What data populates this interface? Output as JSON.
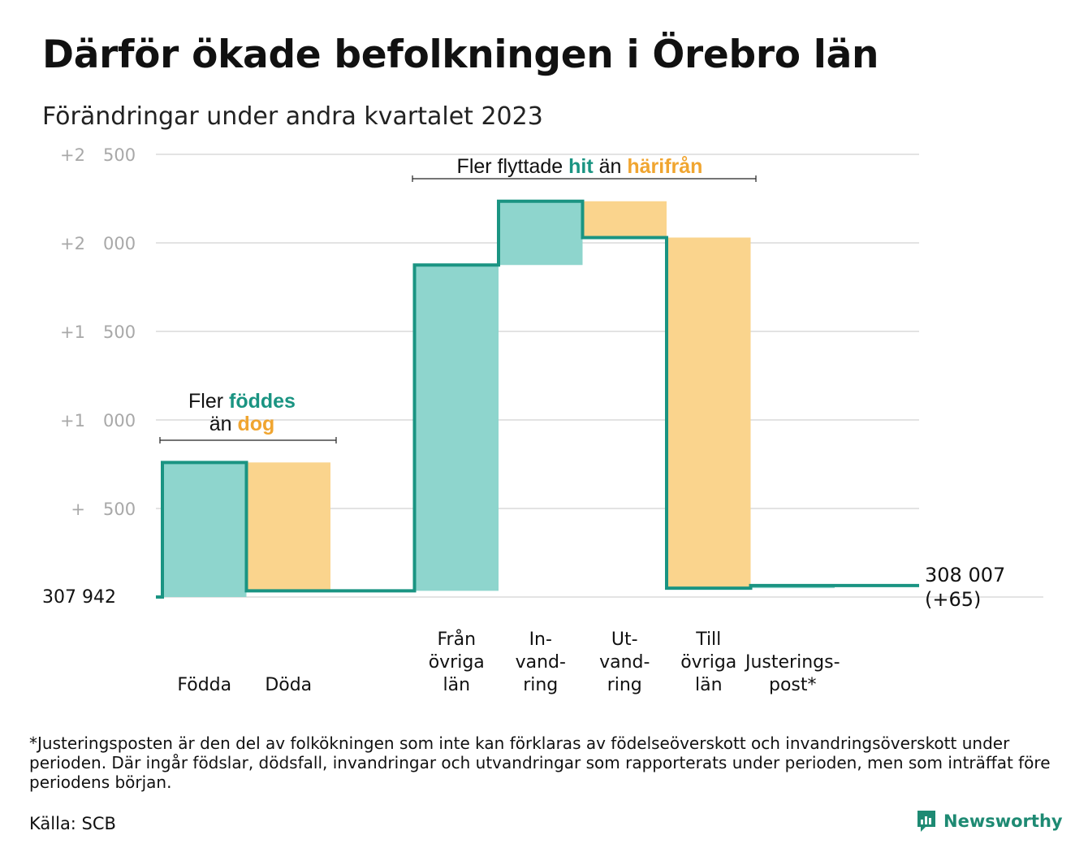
{
  "title": "Därför ökade befolkningen i Örebro län",
  "subtitle": "Förändringar under andra kvartalet 2023",
  "footnote": "*Justeringsposten är den del av folkökningen som inte kan förklaras av födelseöverskott och invandringsöverskott under perioden. Där ingår födslar, dödsfall, invandringar och utvandringar som rapporterats under perioden, men som inträffat före periodens början.",
  "source": "Källa: SCB",
  "brand": {
    "name": "Newsworthy",
    "icon": "newsworthy-logo-icon"
  },
  "colors": {
    "increase": "#8ed5cd",
    "decrease": "#fad48d",
    "line": "#1a9482",
    "accent_teal": "#1a9482",
    "accent_orange": "#f0a530",
    "grid": "#e3e3e3",
    "tick_text": "#a8a8a8"
  },
  "chart_data": {
    "type": "bar",
    "subtype": "waterfall",
    "start_label": "307 942",
    "start_value": 307942,
    "end_label_line1": "308 007",
    "end_label_line2": "(+65)",
    "end_value": 308007,
    "ylim": [
      0,
      2500
    ],
    "yticks": [
      {
        "value": 500,
        "label_a": "+",
        "label_b": "500"
      },
      {
        "value": 1000,
        "label_a": "+1",
        "label_b": "000"
      },
      {
        "value": 1500,
        "label_a": "+1",
        "label_b": "500"
      },
      {
        "value": 2000,
        "label_a": "+2",
        "label_b": "000"
      },
      {
        "value": 2500,
        "label_a": "+2",
        "label_b": "500"
      }
    ],
    "grid": true,
    "steps": [
      {
        "label": [
          "Födda"
        ],
        "kind": "increase",
        "from": 0,
        "to": 760
      },
      {
        "label": [
          "Döda"
        ],
        "kind": "decrease",
        "from": 760,
        "to": 35
      },
      {
        "label": [],
        "kind": "gap",
        "from": 35,
        "to": 35
      },
      {
        "label": [
          "Från",
          "övriga",
          "län"
        ],
        "kind": "increase",
        "from": 35,
        "to": 1875
      },
      {
        "label": [
          "In-",
          "vand-",
          "ring"
        ],
        "kind": "increase",
        "from": 1875,
        "to": 2235
      },
      {
        "label": [
          "Ut-",
          "vand-",
          "ring"
        ],
        "kind": "decrease",
        "from": 2235,
        "to": 2030
      },
      {
        "label": [
          "Till",
          "övriga",
          "län"
        ],
        "kind": "decrease",
        "from": 2030,
        "to": 50
      },
      {
        "label": [
          "Justerings-",
          "post*"
        ],
        "kind": "increase",
        "from": 50,
        "to": 65
      }
    ],
    "annotations": [
      {
        "id": "births",
        "lines": [
          [
            {
              "text": "Fler ",
              "style": "plain"
            },
            {
              "text": "föddes",
              "style": "teal"
            }
          ],
          [
            {
              "text": "än ",
              "style": "plain"
            },
            {
              "text": "dog",
              "style": "orange"
            }
          ]
        ]
      },
      {
        "id": "migration",
        "lines": [
          [
            {
              "text": "Fler flyttade ",
              "style": "plain"
            },
            {
              "text": "hit",
              "style": "teal"
            },
            {
              "text": " än ",
              "style": "plain"
            },
            {
              "text": "härifrån",
              "style": "orange"
            }
          ]
        ]
      }
    ]
  }
}
